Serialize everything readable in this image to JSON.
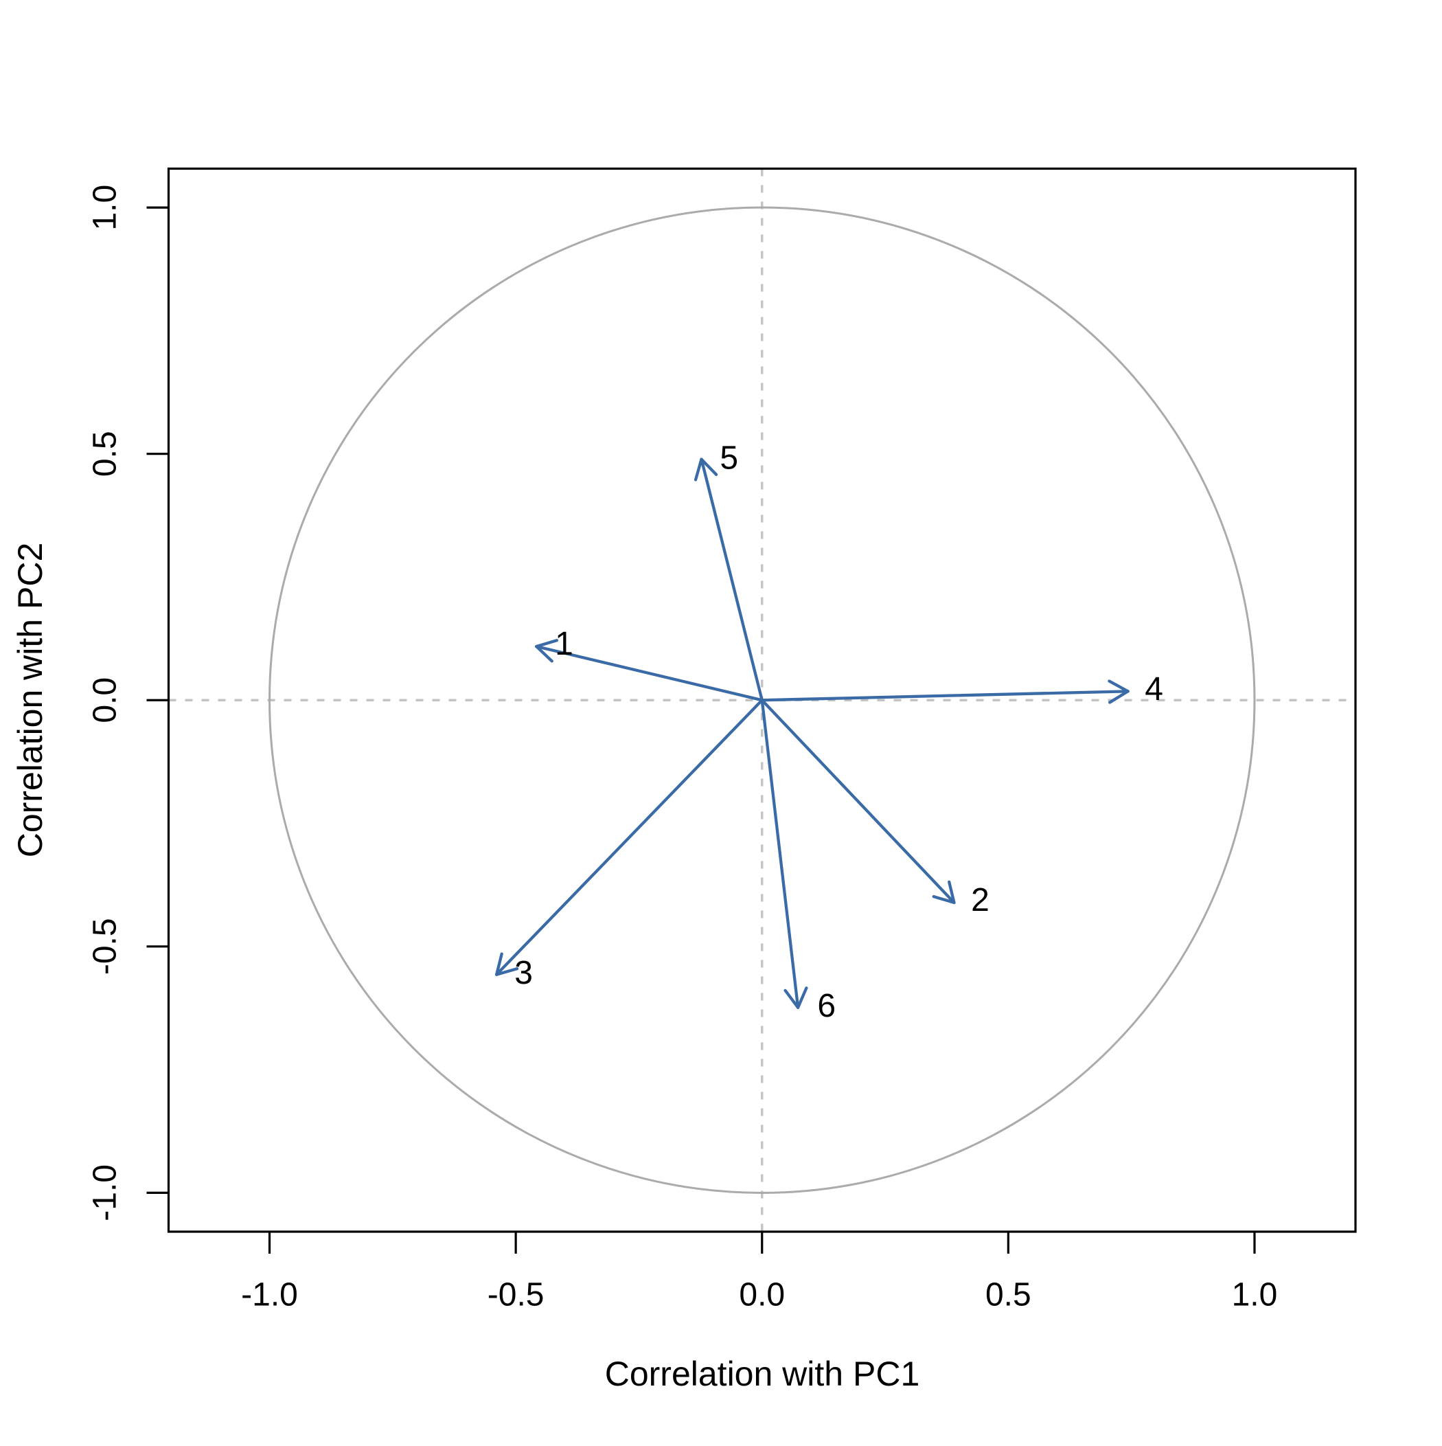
{
  "chart_data": {
    "type": "scatter",
    "subtype": "pca-variable-correlation-circle",
    "title": "",
    "xlabel": "Correlation with PC1",
    "ylabel": "Correlation with PC2",
    "xlim": [
      -1.205,
      1.205
    ],
    "ylim": [
      -1.079,
      1.079
    ],
    "xticks": [
      -1.0,
      -0.5,
      0.0,
      0.5,
      1.0
    ],
    "yticks": [
      -1.0,
      -0.5,
      0.0,
      0.5,
      1.0
    ],
    "xtick_labels": [
      "-1.0",
      "-0.5",
      "0.0",
      "0.5",
      "1.0"
    ],
    "ytick_labels": [
      "-1.0",
      "-0.5",
      "0.0",
      "0.5",
      "1.0"
    ],
    "grid": false,
    "legend": null,
    "unit_circle": {
      "cx": 0,
      "cy": 0,
      "r": 1
    },
    "zero_lines": {
      "horizontal_y": 0,
      "vertical_x": 0,
      "style": "dashed"
    },
    "arrows_origin": [
      0,
      0
    ],
    "variables": [
      {
        "label": "1",
        "x": -0.458,
        "y": 0.109,
        "label_x": -0.402,
        "label_y": 0.114
      },
      {
        "label": "2",
        "x": 0.39,
        "y": -0.411,
        "label_x": 0.443,
        "label_y": -0.406
      },
      {
        "label": "3",
        "x": -0.539,
        "y": -0.557,
        "label_x": -0.484,
        "label_y": -0.554
      },
      {
        "label": "4",
        "x": 0.743,
        "y": 0.018,
        "label_x": 0.796,
        "label_y": 0.022
      },
      {
        "label": "5",
        "x": -0.123,
        "y": 0.489,
        "label_x": -0.067,
        "label_y": 0.491
      },
      {
        "label": "6",
        "x": 0.073,
        "y": -0.624,
        "label_x": 0.131,
        "label_y": -0.621
      }
    ],
    "colors": {
      "arrow": "#3A6BA6",
      "circle": "#ABABAB",
      "zero_line": "#C3C3C3",
      "axis": "#000000",
      "text": "#000000",
      "background": "#FFFFFF"
    }
  }
}
